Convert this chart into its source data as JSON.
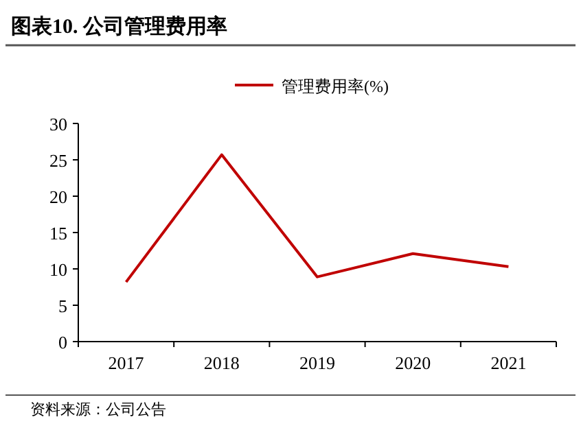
{
  "chart_data": {
    "type": "line",
    "title": "图表10. 公司管理费用率",
    "categories": [
      "2017",
      "2018",
      "2019",
      "2020",
      "2021"
    ],
    "series": [
      {
        "name": "管理费用率(%)",
        "color": "#c00000",
        "values": [
          8.2,
          25.7,
          8.9,
          12.1,
          10.3
        ]
      }
    ],
    "ylim": [
      0,
      30
    ],
    "yticks": [
      0,
      5,
      10,
      15,
      20,
      25,
      30
    ],
    "legend": "top",
    "grid": false,
    "annotations": [
      "资料来源：公司公告"
    ]
  }
}
